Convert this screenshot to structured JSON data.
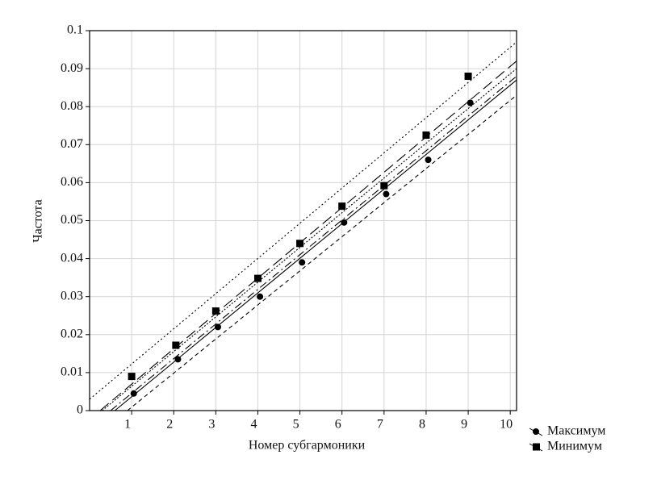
{
  "chart_data": {
    "type": "scatter",
    "xlabel": "Номер субгармоники",
    "ylabel": "Частота",
    "xlim": [
      0,
      10.15
    ],
    "ylim": [
      0,
      0.1
    ],
    "xticks": [
      1,
      2,
      3,
      4,
      5,
      6,
      7,
      8,
      9,
      10
    ],
    "yticks": [
      0,
      0.01,
      0.02,
      0.03,
      0.04,
      0.05,
      0.06,
      0.07,
      0.08,
      0.09,
      0.1
    ],
    "grid": true,
    "legend": "outside-bottom-right",
    "series": [
      {
        "name": "Максимум",
        "marker": "circle",
        "color": "#000000",
        "x": [
          1.05,
          2.1,
          3.05,
          4.05,
          5.05,
          6.05,
          7.05,
          8.05,
          9.05
        ],
        "values": [
          0.0045,
          0.0135,
          0.022,
          0.03,
          0.039,
          0.0495,
          0.057,
          0.066,
          0.081
        ]
      },
      {
        "name": "Минимум",
        "marker": "square",
        "color": "#000000",
        "x": [
          1.0,
          2.05,
          3.0,
          4.0,
          5.0,
          6.0,
          7.0,
          8.0,
          9.0
        ],
        "values": [
          0.009,
          0.0172,
          0.0262,
          0.0348,
          0.044,
          0.0538,
          0.0592,
          0.0725,
          0.088
        ]
      }
    ],
    "lines": [
      {
        "dash": "none",
        "x": [
          0.6,
          10.15
        ],
        "values": [
          0,
          0.087
        ]
      },
      {
        "dash": "5,4",
        "x": [
          0.9,
          10.15
        ],
        "values": [
          0,
          0.083
        ]
      },
      {
        "dash": "2,2",
        "x": [
          0.3,
          10.15
        ],
        "values": [
          0,
          0.09
        ]
      },
      {
        "dash": "14,6",
        "x": [
          0.25,
          10.15
        ],
        "values": [
          0,
          0.092
        ]
      },
      {
        "dash": "2,3",
        "x": [
          0,
          10.15
        ],
        "values": [
          0.003,
          0.097
        ]
      },
      {
        "dash": "10,4,2,4",
        "x": [
          0.5,
          10.15
        ],
        "values": [
          0,
          0.088
        ]
      }
    ]
  }
}
